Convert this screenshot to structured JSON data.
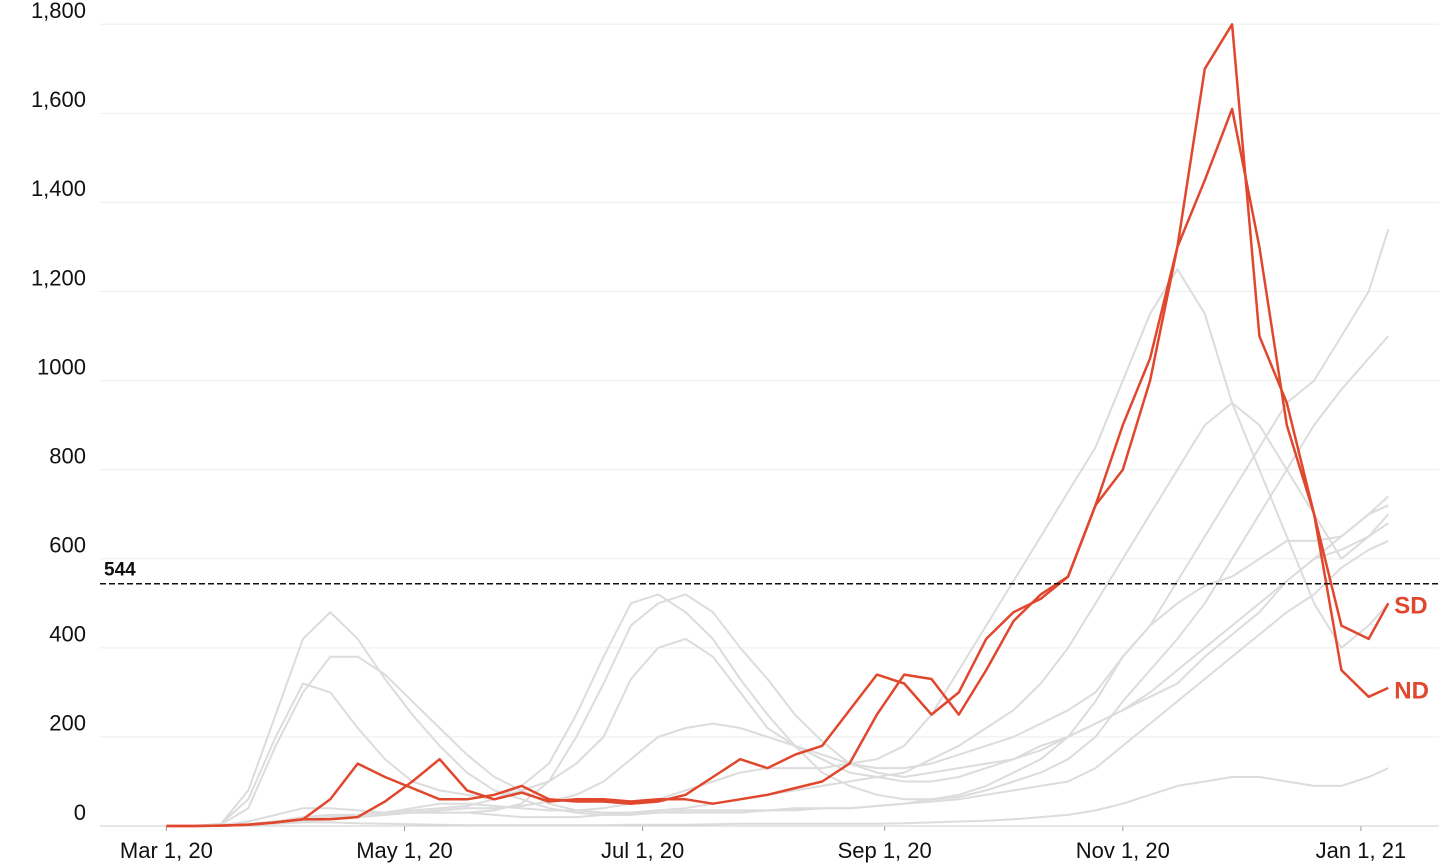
{
  "chart_data": {
    "type": "line",
    "x": [
      "2020-03-01",
      "2020-03-08",
      "2020-03-15",
      "2020-03-22",
      "2020-03-29",
      "2020-04-05",
      "2020-04-12",
      "2020-04-19",
      "2020-04-26",
      "2020-05-03",
      "2020-05-10",
      "2020-05-17",
      "2020-05-24",
      "2020-05-31",
      "2020-06-07",
      "2020-06-14",
      "2020-06-21",
      "2020-06-28",
      "2020-07-05",
      "2020-07-12",
      "2020-07-19",
      "2020-07-26",
      "2020-08-02",
      "2020-08-09",
      "2020-08-16",
      "2020-08-23",
      "2020-08-30",
      "2020-09-06",
      "2020-09-13",
      "2020-09-20",
      "2020-09-27",
      "2020-10-04",
      "2020-10-11",
      "2020-10-18",
      "2020-10-25",
      "2020-11-01",
      "2020-11-08",
      "2020-11-15",
      "2020-11-22",
      "2020-11-29",
      "2020-12-06",
      "2020-12-13",
      "2020-12-20",
      "2020-12-27",
      "2021-01-03",
      "2021-01-08"
    ],
    "xlim": [
      "2020-02-13",
      "2021-01-21"
    ],
    "xticks": [
      {
        "value": "2020-03-01",
        "label": "Mar 1, 20"
      },
      {
        "value": "2020-05-01",
        "label": "May 1, 20"
      },
      {
        "value": "2020-07-01",
        "label": "Jul 1, 20"
      },
      {
        "value": "2020-09-01",
        "label": "Sep 1, 20"
      },
      {
        "value": "2020-11-01",
        "label": "Nov 1, 20"
      },
      {
        "value": "2021-01-01",
        "label": "Jan 1, 21"
      }
    ],
    "ylim": [
      0,
      1850
    ],
    "yticks": [
      0,
      200,
      400,
      600,
      800,
      1000,
      {
        "value": 1200,
        "label": "1,200"
      },
      {
        "value": 1400,
        "label": "1,400"
      },
      {
        "value": 1600,
        "label": "1,600"
      },
      {
        "value": 1800,
        "label": "1,800"
      }
    ],
    "grid": true,
    "reference_line": 544,
    "series": [
      {
        "color": "#dcdcdc",
        "values": [
          0,
          0,
          5,
          80,
          250,
          420,
          480,
          420,
          330,
          250,
          180,
          120,
          80,
          60,
          40,
          30,
          25,
          25,
          30,
          35,
          35,
          35,
          35,
          35,
          40,
          40,
          45,
          50,
          55,
          60,
          70,
          80,
          90,
          100,
          130,
          180,
          230,
          280,
          330,
          380,
          430,
          480,
          520,
          580,
          620,
          640
        ]
      },
      {
        "color": "#dcdcdc",
        "values": [
          0,
          0,
          3,
          40,
          180,
          300,
          380,
          380,
          340,
          280,
          220,
          160,
          110,
          80,
          50,
          35,
          30,
          30,
          30,
          30,
          30,
          30,
          35,
          40,
          40,
          40,
          45,
          50,
          60,
          70,
          90,
          120,
          150,
          200,
          280,
          380,
          450,
          500,
          540,
          560,
          600,
          640,
          640,
          650,
          700,
          720
        ]
      },
      {
        "color": "#dcdcdc",
        "values": [
          0,
          0,
          1,
          5,
          10,
          15,
          20,
          25,
          30,
          35,
          40,
          45,
          60,
          90,
          140,
          250,
          380,
          500,
          520,
          480,
          420,
          330,
          250,
          180,
          120,
          90,
          70,
          60,
          60,
          65,
          80,
          100,
          120,
          150,
          200,
          280,
          350,
          420,
          500,
          600,
          700,
          800,
          900,
          980,
          1050,
          1100
        ]
      },
      {
        "color": "#dcdcdc",
        "values": [
          0,
          0,
          2,
          10,
          25,
          40,
          40,
          35,
          30,
          30,
          30,
          30,
          35,
          50,
          100,
          200,
          320,
          450,
          500,
          520,
          480,
          400,
          330,
          250,
          190,
          140,
          120,
          110,
          120,
          130,
          140,
          150,
          180,
          200,
          230,
          260,
          300,
          350,
          400,
          450,
          500,
          550,
          600,
          620,
          650,
          680
        ]
      },
      {
        "color": "#dcdcdc",
        "values": [
          0,
          0,
          1,
          3,
          10,
          20,
          25,
          25,
          30,
          40,
          50,
          50,
          45,
          40,
          35,
          35,
          40,
          50,
          60,
          80,
          100,
          120,
          130,
          130,
          130,
          140,
          150,
          180,
          250,
          350,
          450,
          550,
          650,
          750,
          850,
          1000,
          1150,
          1250,
          1150,
          950,
          800,
          650,
          500,
          400,
          450,
          500
        ]
      },
      {
        "color": "#dcdcdc",
        "values": [
          0,
          0,
          0,
          2,
          5,
          10,
          15,
          20,
          25,
          30,
          30,
          30,
          25,
          20,
          20,
          20,
          25,
          30,
          35,
          40,
          50,
          60,
          70,
          80,
          90,
          100,
          110,
          120,
          150,
          180,
          220,
          260,
          320,
          400,
          500,
          600,
          700,
          800,
          900,
          950,
          900,
          800,
          700,
          600,
          650,
          700
        ]
      },
      {
        "color": "#dcdcdc",
        "values": [
          0,
          0,
          1,
          3,
          5,
          8,
          8,
          6,
          5,
          4,
          3,
          2,
          2,
          2,
          2,
          2,
          2,
          3,
          3,
          3,
          4,
          5,
          5,
          5,
          5,
          5,
          5,
          6,
          8,
          10,
          12,
          15,
          20,
          25,
          35,
          50,
          70,
          90,
          100,
          110,
          110,
          100,
          90,
          90,
          110,
          130
        ]
      },
      {
        "color": "#dcdcdc",
        "values": [
          0,
          0,
          1,
          4,
          10,
          15,
          18,
          20,
          25,
          30,
          35,
          40,
          40,
          45,
          55,
          70,
          100,
          150,
          200,
          220,
          230,
          220,
          200,
          180,
          160,
          140,
          130,
          130,
          140,
          160,
          180,
          200,
          230,
          260,
          300,
          380,
          450,
          550,
          650,
          750,
          850,
          950,
          1000,
          1100,
          1200,
          1340
        ]
      },
      {
        "color": "#dcdcdc",
        "values": [
          0,
          0,
          5,
          60,
          200,
          320,
          300,
          220,
          150,
          100,
          80,
          70,
          60,
          80,
          100,
          140,
          200,
          330,
          400,
          420,
          380,
          300,
          220,
          180,
          150,
          120,
          110,
          100,
          100,
          110,
          130,
          150,
          170,
          200,
          230,
          260,
          290,
          320,
          380,
          430,
          480,
          550,
          600,
          650,
          700,
          740
        ]
      },
      {
        "name": "SD",
        "color": "#e0472d",
        "values": [
          0,
          0,
          1,
          3,
          8,
          15,
          60,
          140,
          110,
          85,
          60,
          60,
          70,
          90,
          60,
          55,
          55,
          50,
          55,
          70,
          110,
          150,
          130,
          160,
          180,
          260,
          340,
          320,
          250,
          300,
          420,
          480,
          510,
          560,
          720,
          900,
          1050,
          1300,
          1450,
          1610,
          1300,
          900,
          700,
          450,
          420,
          500
        ]
      },
      {
        "name": "ND",
        "color": "#e0472d",
        "values": [
          0,
          0,
          1,
          3,
          8,
          15,
          15,
          20,
          55,
          100,
          150,
          80,
          60,
          75,
          55,
          60,
          60,
          55,
          60,
          60,
          50,
          60,
          70,
          85,
          100,
          140,
          250,
          340,
          330,
          250,
          350,
          460,
          520,
          560,
          720,
          800,
          1000,
          1300,
          1700,
          1800,
          1100,
          950,
          700,
          350,
          290,
          310
        ]
      }
    ]
  }
}
